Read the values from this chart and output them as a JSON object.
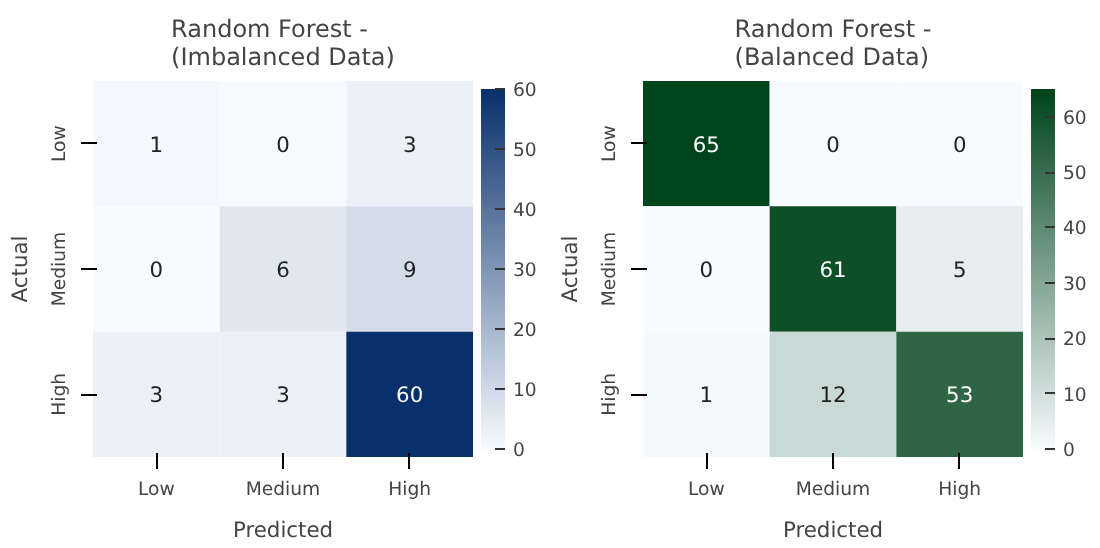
{
  "chart_data": [
    {
      "type": "heatmap",
      "title": "Random Forest -\n(Imbalanced Data)",
      "xlabel": "Predicted",
      "ylabel": "Actual",
      "categories": [
        "Low",
        "Medium",
        "High"
      ],
      "y_categories": [
        "Low",
        "Medium",
        "High"
      ],
      "cells": [
        [
          1,
          0,
          3
        ],
        [
          0,
          6,
          9
        ],
        [
          3,
          3,
          60
        ]
      ],
      "clim": [
        0,
        60
      ],
      "cticks": [
        0,
        10,
        20,
        30,
        40,
        50,
        60
      ],
      "color": "#08306b",
      "data_labels": true
    },
    {
      "type": "heatmap",
      "title": "Random Forest -\n(Balanced Data)",
      "xlabel": "Predicted",
      "ylabel": "Actual",
      "categories": [
        "Low",
        "Medium",
        "High"
      ],
      "y_categories": [
        "Low",
        "Medium",
        "High"
      ],
      "cells": [
        [
          65,
          0,
          0
        ],
        [
          0,
          61,
          5
        ],
        [
          1,
          12,
          53
        ]
      ],
      "clim": [
        0,
        65
      ],
      "cticks": [
        0,
        10,
        20,
        30,
        40,
        50,
        60
      ],
      "color": "#00441b",
      "data_labels": true
    }
  ]
}
